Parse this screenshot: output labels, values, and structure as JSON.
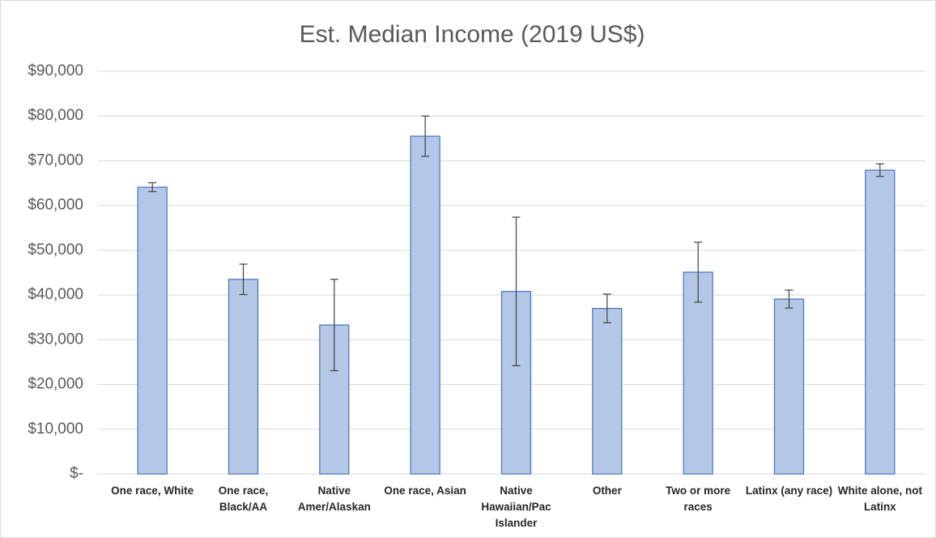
{
  "chart_data": {
    "type": "bar",
    "title": "Est. Median Income (2019 US$)",
    "categories": [
      "One race, White",
      "One race, Black/AA",
      "Native Amer/Alaskan",
      "One race, Asian",
      "Native Hawaiian/Pac Islander",
      "Other",
      "Two or more races",
      "Latinx (any race)",
      "White alone, not Latinx"
    ],
    "values": [
      64100,
      43500,
      33300,
      75500,
      40800,
      37000,
      45100,
      39100,
      67900
    ],
    "errors": [
      1000,
      3400,
      10200,
      4500,
      16600,
      3200,
      6700,
      2000,
      1400
    ],
    "color": "#b4c7e7",
    "edge_color": "#4472c4",
    "error_color": "#404040",
    "ylim": [
      0,
      90000
    ],
    "yticks": [
      {
        "value": 0,
        "label": "$-"
      },
      {
        "value": 10000,
        "label": "$10,000"
      },
      {
        "value": 20000,
        "label": "$20,000"
      },
      {
        "value": 30000,
        "label": "$30,000"
      },
      {
        "value": 40000,
        "label": "$40,000"
      },
      {
        "value": 50000,
        "label": "$50,000"
      },
      {
        "value": 60000,
        "label": "$60,000"
      },
      {
        "value": 70000,
        "label": "$70,000"
      },
      {
        "value": 80000,
        "label": "$80,000"
      },
      {
        "value": 90000,
        "label": "$90,000"
      }
    ],
    "grid": true
  }
}
